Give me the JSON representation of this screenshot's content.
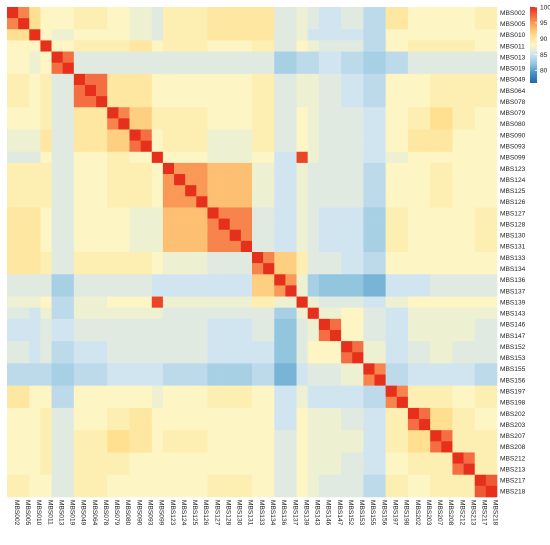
{
  "chart_data": {
    "type": "heatmap",
    "labels": [
      "MBS002",
      "MBS005",
      "MBS010",
      "MBS011",
      "MBS013",
      "MBS019",
      "MBS049",
      "MBS064",
      "MBS078",
      "MBS079",
      "MBS080",
      "MBS090",
      "MBS093",
      "MBS099",
      "MBS123",
      "MBS124",
      "MBS125",
      "MBS126",
      "MBS127",
      "MBS128",
      "MBS130",
      "MBS131",
      "MBS133",
      "MBS134",
      "MBS136",
      "MBS137",
      "MBS139",
      "MBS143",
      "MBS146",
      "MBS147",
      "MBS152",
      "MBS153",
      "MBS155",
      "MBS156",
      "MBS197",
      "MBS198",
      "MBS202",
      "MBS203",
      "MBS207",
      "MBS208",
      "MBS212",
      "MBS213",
      "MBS217",
      "MBS218"
    ],
    "groups": [
      [
        0,
        2
      ],
      [
        2,
        3
      ],
      [
        3,
        4
      ],
      [
        4,
        6
      ],
      [
        6,
        9
      ],
      [
        9,
        11
      ],
      [
        11,
        13
      ],
      [
        13,
        14
      ],
      [
        14,
        18
      ],
      [
        18,
        22
      ],
      [
        22,
        24
      ],
      [
        24,
        26
      ],
      [
        26,
        27
      ],
      [
        27,
        28
      ],
      [
        28,
        30
      ],
      [
        30,
        32
      ],
      [
        32,
        34
      ],
      [
        34,
        36
      ],
      [
        36,
        38
      ],
      [
        38,
        40
      ],
      [
        40,
        42
      ],
      [
        42,
        44
      ]
    ],
    "group_values": [
      [
        96,
        91,
        88,
        88,
        89,
        88,
        87,
        86,
        89,
        90,
        90,
        86,
        87,
        86,
        85,
        86,
        84,
        90,
        88,
        88,
        88,
        89
      ],
      [
        91,
        99,
        88,
        87,
        88,
        88,
        87,
        86,
        89,
        90,
        90,
        86,
        87,
        85,
        85,
        85,
        84,
        88,
        88,
        88,
        88,
        88
      ],
      [
        88,
        88,
        98,
        88,
        89,
        89,
        90,
        88,
        89,
        88,
        89,
        86,
        88,
        87,
        86,
        86,
        84,
        88,
        89,
        89,
        89,
        88
      ],
      [
        88,
        87,
        88,
        97,
        86,
        86,
        86,
        86,
        86,
        86,
        86,
        83,
        84,
        84,
        85,
        84,
        83,
        84,
        86,
        86,
        86,
        86
      ],
      [
        89,
        88,
        89,
        86,
        97,
        90,
        90,
        88,
        88,
        88,
        89,
        86,
        87,
        87,
        86,
        85,
        84,
        88,
        88,
        89,
        89,
        89
      ],
      [
        88,
        88,
        89,
        86,
        90,
        96,
        92,
        89,
        89,
        88,
        89,
        86,
        88,
        87,
        86,
        86,
        85,
        88,
        89,
        91,
        89,
        88
      ],
      [
        87,
        87,
        90,
        86,
        90,
        92,
        97,
        88,
        89,
        87,
        89,
        86,
        88,
        87,
        86,
        86,
        85,
        88,
        90,
        90,
        88,
        88
      ],
      [
        86,
        86,
        88,
        86,
        88,
        89,
        88,
        99,
        88,
        87,
        88,
        85,
        99,
        87,
        86,
        86,
        85,
        87,
        88,
        88,
        88,
        88
      ],
      [
        89,
        89,
        89,
        86,
        88,
        89,
        89,
        88,
        95,
        93,
        87,
        85,
        87,
        86,
        86,
        86,
        84,
        88,
        88,
        89,
        88,
        88
      ],
      [
        90,
        90,
        88,
        86,
        88,
        88,
        87,
        87,
        93,
        96,
        86,
        85,
        87,
        86,
        85,
        85,
        83,
        89,
        88,
        88,
        88,
        89
      ],
      [
        90,
        90,
        89,
        86,
        89,
        89,
        89,
        88,
        87,
        86,
        96,
        92,
        89,
        86,
        86,
        85,
        84,
        88,
        88,
        88,
        88,
        88
      ],
      [
        86,
        86,
        86,
        83,
        86,
        86,
        86,
        85,
        85,
        85,
        92,
        95,
        87,
        83,
        82,
        82,
        81,
        85,
        85,
        86,
        86,
        86
      ],
      [
        87,
        87,
        88,
        84,
        87,
        88,
        88,
        99,
        87,
        87,
        89,
        87,
        98,
        87,
        86,
        86,
        85,
        87,
        88,
        88,
        88,
        88
      ],
      [
        86,
        85,
        87,
        84,
        87,
        87,
        87,
        87,
        86,
        86,
        86,
        83,
        87,
        98,
        87,
        88,
        86,
        85,
        87,
        87,
        87,
        87
      ],
      [
        85,
        85,
        86,
        85,
        86,
        86,
        86,
        86,
        86,
        85,
        86,
        82,
        86,
        87,
        97,
        88,
        86,
        85,
        87,
        87,
        87,
        86
      ],
      [
        86,
        85,
        86,
        84,
        85,
        86,
        86,
        86,
        86,
        85,
        85,
        82,
        86,
        88,
        88,
        97,
        87,
        85,
        86,
        87,
        86,
        86
      ],
      [
        84,
        84,
        84,
        83,
        84,
        85,
        85,
        85,
        84,
        83,
        84,
        81,
        85,
        86,
        86,
        87,
        96,
        84,
        85,
        85,
        85,
        84
      ],
      [
        90,
        88,
        88,
        84,
        88,
        88,
        88,
        87,
        88,
        89,
        88,
        85,
        87,
        85,
        85,
        85,
        84,
        96,
        89,
        89,
        88,
        89
      ],
      [
        88,
        88,
        89,
        86,
        88,
        89,
        90,
        88,
        88,
        88,
        88,
        85,
        88,
        87,
        87,
        86,
        85,
        89,
        97,
        91,
        89,
        88
      ],
      [
        88,
        88,
        89,
        86,
        89,
        91,
        90,
        88,
        89,
        88,
        88,
        86,
        88,
        87,
        87,
        87,
        85,
        89,
        91,
        97,
        89,
        89
      ],
      [
        88,
        88,
        89,
        86,
        89,
        89,
        88,
        88,
        88,
        88,
        88,
        86,
        88,
        87,
        87,
        86,
        85,
        88,
        89,
        89,
        97,
        89
      ],
      [
        89,
        88,
        88,
        86,
        89,
        88,
        88,
        88,
        88,
        89,
        88,
        86,
        88,
        87,
        86,
        86,
        84,
        89,
        88,
        89,
        89,
        98
      ]
    ],
    "color_scale": {
      "min": 76,
      "max": 100,
      "stops": [
        "#2166ac",
        "#4393c3",
        "#92c5de",
        "#d1e5f0",
        "#fdf5c3",
        "#fee090",
        "#fdae61",
        "#f46d43",
        "#e6301c"
      ],
      "ticks": [
        100,
        95,
        90,
        85,
        80
      ]
    },
    "title": "",
    "xlabel": "",
    "ylabel": ""
  }
}
